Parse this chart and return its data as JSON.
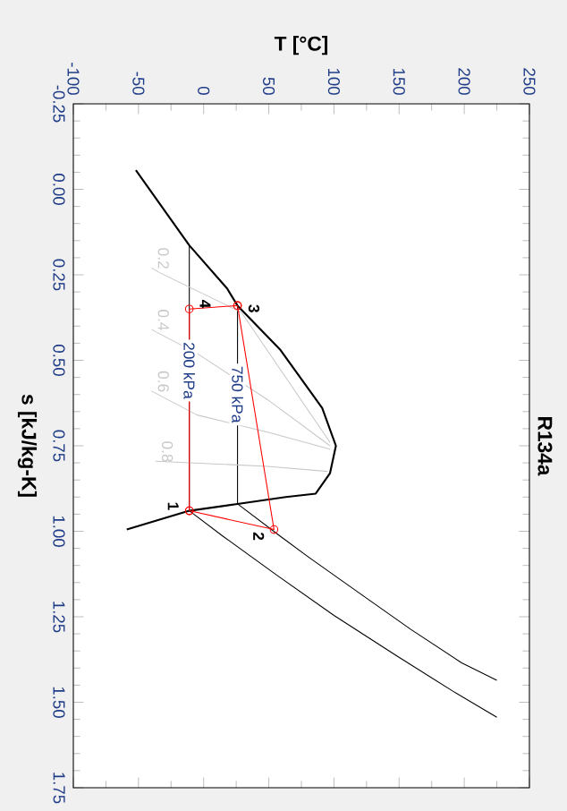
{
  "chart_data": {
    "type": "line",
    "title": "R134a",
    "xlabel": "T [°C]",
    "ylabel": "s [kJ/kg-K]",
    "xlim": [
      -100,
      250
    ],
    "ylim": [
      1.75,
      -0.25
    ],
    "xticks": [
      -100,
      -50,
      0,
      50,
      100,
      150,
      200,
      250
    ],
    "yticks": [
      -0.25,
      {
        "value": 0,
        "label": "0.00"
      },
      0.25,
      {
        "value": 0.5,
        "label": "0.50"
      },
      0.75,
      {
        "value": 1,
        "label": "1.00"
      },
      1.25,
      {
        "value": 1.5,
        "label": "1.50"
      },
      1.75
    ],
    "series": [
      {
        "color": "#000000",
        "values": [
          -0.056,
          0.164,
          0.29,
          0.34,
          0.47,
          0.64,
          0.75,
          0.83,
          0.89,
          0.9,
          0.92,
          0.94,
          0.995
        ],
        "x": [
          -52,
          -11,
          18,
          26,
          59,
          91,
          101.5,
          97,
          86,
          63,
          26,
          -11,
          -59
        ]
      },
      {
        "color": "#000000",
        "values": [
          0.164,
          0.94,
          1.015,
          1.128,
          1.246,
          1.364,
          1.467,
          1.544
        ],
        "x": [
          -11,
          -11,
          15,
          56,
          100,
          148,
          191,
          225
        ]
      },
      {
        "color": "#000000",
        "values": [
          0.34,
          0.92,
          1.015,
          1.077,
          1.185,
          1.287,
          1.385,
          1.436
        ],
        "x": [
          26,
          26,
          59,
          81,
          121,
          159,
          198,
          225
        ]
      },
      {
        "name": "0.2",
        "color": "#c8c8c8",
        "values": [
          0.23,
          0.245,
          0.36,
          0.74
        ],
        "x": [
          -40,
          -33,
          29,
          97
        ]
      },
      {
        "name": "0.4",
        "color": "#c8c8c8",
        "values": [
          0.41,
          0.48,
          0.615,
          0.75
        ],
        "x": [
          -40,
          -5,
          49,
          97
        ]
      },
      {
        "name": "0.6",
        "color": "#c8c8c8",
        "values": [
          0.59,
          0.66,
          0.71,
          0.76
        ],
        "x": [
          -40,
          -5,
          49,
          97
        ]
      },
      {
        "name": "0.8",
        "color": "#c8c8c8",
        "values": [
          0.795,
          0.81,
          0.825
        ],
        "x": [
          -37,
          49,
          95
        ]
      },
      {
        "color": "#ff0000",
        "marker": "circle",
        "values": [
          0.94,
          0.995,
          0.34
        ],
        "x": [
          -11,
          54,
          26
        ]
      },
      {
        "color": "#ff0000",
        "marker": "circle",
        "values": [
          0.34,
          0.35,
          0.94
        ],
        "x": [
          26,
          -11,
          -11
        ]
      }
    ],
    "annotations": [
      {
        "text": "1",
        "y": 0.94,
        "x": -11
      },
      {
        "text": "2",
        "y": 0.995,
        "x": 54
      },
      {
        "text": "3",
        "y": 0.34,
        "x": 26
      },
      {
        "text": "4",
        "y": 0.35,
        "x": -11
      },
      {
        "text": "200 kPa",
        "y": 0.53,
        "x": -11
      },
      {
        "text": "750 kPa",
        "y": 0.6,
        "x": 26
      }
    ]
  }
}
